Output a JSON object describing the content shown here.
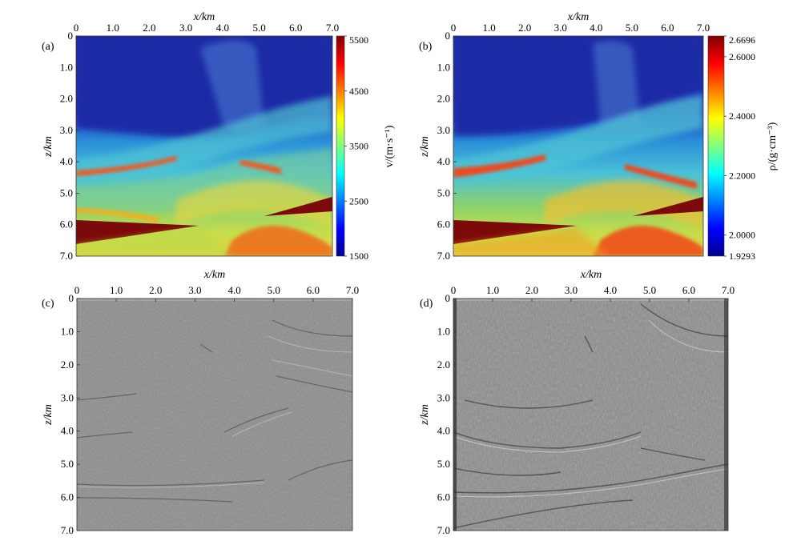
{
  "colors": {
    "jet": [
      "#00008f",
      "#0000ff",
      "#00ffff",
      "#ffff00",
      "#ff0000",
      "#800000"
    ],
    "seismic_bg": "#8b8b8b"
  },
  "chart_data": [
    {
      "type": "heatmap",
      "panel_label": "(a)",
      "xlabel": "x/km",
      "ylabel": "z/km",
      "x_ticks": [
        "0",
        "1.0",
        "2.0",
        "3.0",
        "4.0",
        "5.0",
        "6.0",
        "7.0"
      ],
      "y_ticks": [
        "0",
        "1.0",
        "2.0",
        "3.0",
        "4.0",
        "5.0",
        "6.0",
        "7.0"
      ],
      "xlim": [
        0,
        7.0
      ],
      "ylim": [
        0,
        7.0
      ],
      "colormap": "jet",
      "colorbar": {
        "label": "v/(m·s⁻¹)",
        "min": 1500,
        "max": 5500,
        "tick_labels": [
          "5500",
          "4500",
          "3500",
          "2500",
          "1500"
        ],
        "tick_values": [
          5500,
          4500,
          3500,
          2500,
          1500
        ]
      }
    },
    {
      "type": "heatmap",
      "panel_label": "(b)",
      "xlabel": "x/km",
      "ylabel": "z/km",
      "x_ticks": [
        "0",
        "1.0",
        "2.0",
        "3.0",
        "4.0",
        "5.0",
        "6.0",
        "7.0"
      ],
      "y_ticks": [
        "0",
        "1.0",
        "2.0",
        "3.0",
        "4.0",
        "5.0",
        "6.0",
        "7.0"
      ],
      "xlim": [
        0,
        7.0
      ],
      "ylim": [
        0,
        7.0
      ],
      "colormap": "jet",
      "colorbar": {
        "label": "ρ/(g·cm⁻³)",
        "min": 1.9293,
        "max": 2.6696,
        "tick_labels": [
          "2.6696",
          "2.6000",
          "2.4000",
          "2.2000",
          "2.0000",
          "1.9293"
        ],
        "tick_values": [
          2.6696,
          2.6,
          2.4,
          2.2,
          2.0,
          1.9293
        ]
      }
    },
    {
      "type": "heatmap",
      "panel_label": "(c)",
      "xlabel": "x/km",
      "ylabel": "z/km",
      "x_ticks": [
        "0",
        "1.0",
        "2.0",
        "3.0",
        "4.0",
        "5.0",
        "6.0",
        "7.0"
      ],
      "y_ticks": [
        "0",
        "1.0",
        "2.0",
        "3.0",
        "4.0",
        "5.0",
        "6.0",
        "7.0"
      ],
      "xlim": [
        0,
        7.0
      ],
      "ylim": [
        0,
        7.0
      ],
      "colormap": "gray"
    },
    {
      "type": "heatmap",
      "panel_label": "(d)",
      "xlabel": "x/km",
      "ylabel": "z/km",
      "x_ticks": [
        "0",
        "1.0",
        "2.0",
        "3.0",
        "4.0",
        "5.0",
        "6.0",
        "7.0"
      ],
      "y_ticks": [
        "0",
        "1.0",
        "2.0",
        "3.0",
        "4.0",
        "5.0",
        "6.0",
        "7.0"
      ],
      "xlim": [
        0,
        7.0
      ],
      "ylim": [
        0,
        7.0
      ],
      "colormap": "gray"
    }
  ]
}
